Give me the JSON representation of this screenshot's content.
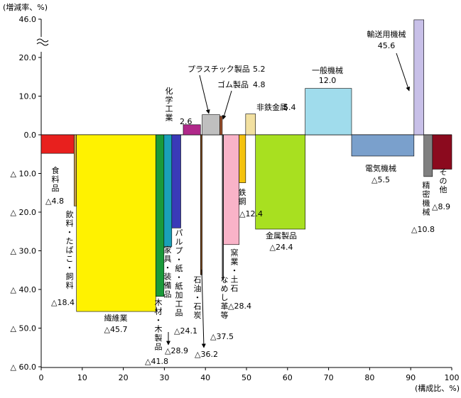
{
  "chart_data": {
    "type": "variable-width bar (marimekko)",
    "y_unit_label": "(増減率、%)",
    "x_unit_label": "(構成比、%)",
    "ylim": [
      -60,
      46
    ],
    "y_axis_break": {
      "from": 25,
      "to": 40
    },
    "x_ticks": [
      "0",
      "10",
      "20",
      "30",
      "40",
      "50",
      "60",
      "70",
      "80",
      "90",
      "100"
    ],
    "y_ticks": [
      {
        "value": 46,
        "label": "46.0"
      },
      {
        "value": 20,
        "label": "20.0"
      },
      {
        "value": 10,
        "label": "10.0"
      },
      {
        "value": 0,
        "label": "0.0"
      },
      {
        "value": -10,
        "label": "△ 10.0"
      },
      {
        "value": -20,
        "label": "△ 20.0"
      },
      {
        "value": -30,
        "label": "△ 30.0"
      },
      {
        "value": -40,
        "label": "△ 40.0"
      },
      {
        "value": -50,
        "label": "△ 50.0"
      },
      {
        "value": -60,
        "label": "△ 60.0"
      }
    ],
    "series": [
      {
        "name": "食料品",
        "x0": 0.0,
        "x1": 8.0,
        "value": -4.8,
        "value_label": "△4.8",
        "color": "#e8201e"
      },
      {
        "name": "飲料・たばこ・飼料",
        "x0": 8.0,
        "x1": 8.6,
        "value": -18.4,
        "value_label": "△18.4",
        "color": "#c8a050"
      },
      {
        "name": "繊維業",
        "x0": 8.6,
        "x1": 27.9,
        "value": -45.7,
        "value_label": "△45.7",
        "color": "#fff200"
      },
      {
        "name": "木材・木製品",
        "x0": 27.9,
        "x1": 29.9,
        "value": -41.8,
        "value_label": "△41.8",
        "color": "#1a9a3a"
      },
      {
        "name": "家具・装備品",
        "x0": 29.9,
        "x1": 31.8,
        "value": -28.9,
        "value_label": "△28.9",
        "color": "#1aa0b8"
      },
      {
        "name": "パルプ・紙・紙加工品",
        "x0": 31.8,
        "x1": 34.0,
        "value": -24.1,
        "value_label": "△24.1",
        "color": "#3a3ab8"
      },
      {
        "name": "化学工業",
        "x0": 34.6,
        "x1": 38.8,
        "value": 2.6,
        "value_label": "2.6",
        "color": "#b0288a"
      },
      {
        "name": "石油・石炭",
        "x0": 38.8,
        "x1": 39.2,
        "value": -36.2,
        "value_label": "△36.2",
        "color": "#7a4a20"
      },
      {
        "name": "プラスチック製品",
        "x0": 39.2,
        "x1": 43.5,
        "value": 5.2,
        "value_label": "5.2",
        "color": "#bfbfbf"
      },
      {
        "name": "ゴム製品",
        "x0": 43.5,
        "x1": 44.1,
        "value": 4.8,
        "value_label": "4.8",
        "color": "#a0522d"
      },
      {
        "name": "なめし革等",
        "x0": 44.1,
        "x1": 44.4,
        "value": -37.5,
        "value_label": "△37.5",
        "color": "#555555"
      },
      {
        "name": "窯業・土石",
        "x0": 44.4,
        "x1": 48.2,
        "value": -28.4,
        "value_label": "△28.4",
        "color": "#f9b3c8"
      },
      {
        "name": "鉄鋼",
        "x0": 48.2,
        "x1": 49.8,
        "value": -12.4,
        "value_label": "△12.4",
        "color": "#f4c20d"
      },
      {
        "name": "非鉄金属",
        "x0": 49.8,
        "x1": 52.2,
        "value": 5.4,
        "value_label": "5.4",
        "color": "#f2e0a0"
      },
      {
        "name": "金属製品",
        "x0": 52.2,
        "x1": 64.3,
        "value": -24.4,
        "value_label": "△24.4",
        "color": "#a8e020"
      },
      {
        "name": "一般機械",
        "x0": 64.3,
        "x1": 75.6,
        "value": 12.0,
        "value_label": "12.0",
        "color": "#a0dcec"
      },
      {
        "name": "電気機械",
        "x0": 75.6,
        "x1": 90.8,
        "value": -5.5,
        "value_label": "△5.5",
        "color": "#7aa0cc"
      },
      {
        "name": "輸送用機械",
        "x0": 90.8,
        "x1": 93.2,
        "value": 45.6,
        "value_label": "45.6",
        "color": "#c8c0e8"
      },
      {
        "name": "精密機械",
        "x0": 93.2,
        "x1": 95.3,
        "value": -10.8,
        "value_label": "△10.8",
        "color": "#808080"
      },
      {
        "name": "その他",
        "x0": 95.3,
        "x1": 100.0,
        "value": -8.9,
        "value_label": "△8.9",
        "color": "#8b0a1e"
      }
    ]
  }
}
